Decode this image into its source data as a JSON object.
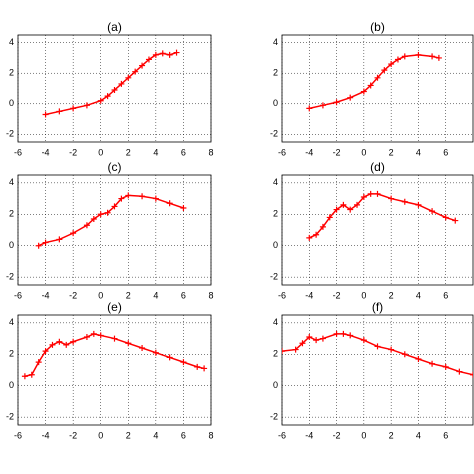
{
  "chart_data": [
    {
      "type": "line",
      "title": "(a)",
      "color": "#ff0000",
      "marker": "+",
      "grid": true,
      "xlim": [
        -6,
        8
      ],
      "ylim": [
        -2.5,
        4.5
      ],
      "xticks": [
        -6,
        -4,
        -2,
        0,
        2,
        4,
        6,
        8
      ],
      "yticks": [
        -2,
        0,
        2,
        4
      ],
      "x": [
        -4,
        -3,
        -2,
        -1,
        0,
        0.5,
        1,
        1.5,
        2,
        2.5,
        3,
        3.5,
        4,
        4.5,
        5,
        5.5
      ],
      "values": [
        -0.7,
        -0.5,
        -0.3,
        -0.1,
        0.2,
        0.5,
        0.9,
        1.3,
        1.7,
        2.1,
        2.5,
        2.9,
        3.2,
        3.3,
        3.2,
        3.35
      ]
    },
    {
      "type": "line",
      "title": "(b)",
      "color": "#ff0000",
      "marker": "+",
      "grid": true,
      "xlim": [
        -6,
        8
      ],
      "ylim": [
        -2.5,
        4.5
      ],
      "xticks": [
        -6,
        -4,
        -2,
        0,
        2,
        4,
        6
      ],
      "yticks": [
        -2,
        0,
        2,
        4
      ],
      "x": [
        -4,
        -3,
        -2,
        -1,
        0,
        0.5,
        1,
        1.5,
        2,
        2.5,
        3,
        4,
        5,
        5.5
      ],
      "values": [
        -0.3,
        -0.1,
        0.1,
        0.4,
        0.8,
        1.2,
        1.7,
        2.2,
        2.6,
        2.9,
        3.1,
        3.2,
        3.1,
        3.0
      ]
    },
    {
      "type": "line",
      "title": "(c)",
      "color": "#ff0000",
      "marker": "+",
      "grid": true,
      "xlim": [
        -6,
        8
      ],
      "ylim": [
        -2.5,
        4.5
      ],
      "xticks": [
        -6,
        -4,
        -2,
        0,
        2,
        4,
        6,
        8
      ],
      "yticks": [
        -2,
        0,
        2,
        4
      ],
      "x": [
        -4.5,
        -4,
        -3,
        -2,
        -1,
        -0.5,
        0,
        0.5,
        1,
        1.5,
        2,
        3,
        4,
        5,
        6
      ],
      "values": [
        0,
        0.2,
        0.4,
        0.8,
        1.3,
        1.7,
        2.0,
        2.1,
        2.5,
        3.0,
        3.2,
        3.15,
        3.0,
        2.7,
        2.4
      ]
    },
    {
      "type": "line",
      "title": "(d)",
      "color": "#ff0000",
      "marker": "+",
      "grid": true,
      "xlim": [
        -6,
        8
      ],
      "ylim": [
        -2.5,
        4.5
      ],
      "xticks": [
        -6,
        -4,
        -2,
        0,
        2,
        4,
        6
      ],
      "yticks": [
        -2,
        0,
        2,
        4
      ],
      "x": [
        -4,
        -3.5,
        -3,
        -2.5,
        -2,
        -1.5,
        -1,
        -0.5,
        0,
        0.5,
        1,
        2,
        3,
        4,
        5,
        6,
        6.7
      ],
      "values": [
        0.5,
        0.7,
        1.2,
        1.8,
        2.3,
        2.6,
        2.3,
        2.6,
        3.1,
        3.3,
        3.3,
        3.0,
        2.8,
        2.6,
        2.2,
        1.8,
        1.6
      ]
    },
    {
      "type": "line",
      "title": "(e)",
      "color": "#ff0000",
      "marker": "+",
      "grid": true,
      "xlim": [
        -6,
        8
      ],
      "ylim": [
        -2.5,
        4.5
      ],
      "xticks": [
        -6,
        -4,
        -2,
        0,
        2,
        4,
        6,
        8
      ],
      "yticks": [
        -2,
        0,
        2,
        4
      ],
      "x": [
        -5.5,
        -5,
        -4.5,
        -4,
        -3.5,
        -3,
        -2.5,
        -2,
        -1,
        -0.5,
        0,
        1,
        2,
        3,
        4,
        5,
        6,
        7,
        7.5
      ],
      "values": [
        0.6,
        0.7,
        1.5,
        2.2,
        2.6,
        2.8,
        2.6,
        2.8,
        3.1,
        3.3,
        3.2,
        3.0,
        2.7,
        2.4,
        2.1,
        1.8,
        1.5,
        1.2,
        1.1
      ]
    },
    {
      "type": "line",
      "title": "(f)",
      "color": "#ff0000",
      "marker": "+",
      "grid": true,
      "xlim": [
        -6,
        8
      ],
      "ylim": [
        -2.5,
        4.5
      ],
      "xticks": [
        -6,
        -4,
        -2,
        0,
        2,
        4,
        6
      ],
      "yticks": [
        -2,
        0,
        2,
        4
      ],
      "x": [
        -6,
        -5,
        -4.5,
        -4,
        -3.5,
        -3,
        -2,
        -1.5,
        -1,
        0,
        1,
        2,
        3,
        4,
        5,
        6,
        7,
        8
      ],
      "values": [
        2.2,
        2.3,
        2.7,
        3.1,
        2.9,
        3.0,
        3.3,
        3.3,
        3.2,
        2.9,
        2.5,
        2.3,
        2.0,
        1.7,
        1.4,
        1.2,
        0.9,
        0.7
      ]
    }
  ]
}
